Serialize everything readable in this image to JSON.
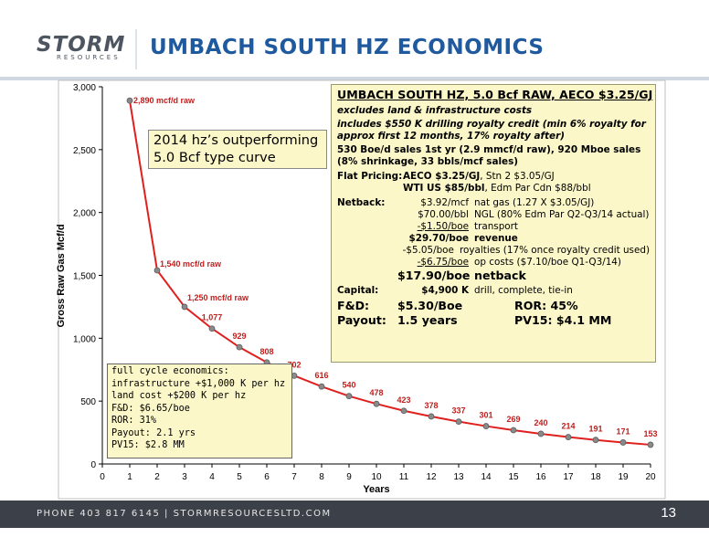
{
  "header": {
    "logo_main": "STORM",
    "logo_sub": "RESOURCES",
    "title": "UMBACH SOUTH HZ ECONOMICS",
    "accent_color": "#1f5a9e"
  },
  "footer": {
    "text": "PHONE 403 817 6145   |   STORMRESOURCESLTD.COM",
    "page_number": "13"
  },
  "callout": {
    "line1": "2014 hz’s outperforming",
    "line2": "5.0 Bcf type curve"
  },
  "info_box": {
    "title": "UMBACH SOUTH HZ, 5.0 Bcf RAW, AECO $3.25/GJ",
    "excludes": "excludes land & infrastructure costs",
    "includes": "includes $550 K drilling royalty credit (min 6% royalty for approx first 12 months, 17% royalty after)",
    "sales": "530 Boe/d sales 1st yr (2.9 mmcf/d raw), 920 Mboe sales (8% shrinkage, 33 bbls/mcf sales)",
    "flat_pricing_label": "Flat Pricing:",
    "flat_pricing_line1_bold": "AECO $3.25/GJ",
    "flat_pricing_line1_rest": ", Stn 2 $3.05/GJ",
    "flat_pricing_line2_bold": "WTI US $85/bbl",
    "flat_pricing_line2_rest": ", Edm Par Cdn $88/bbl",
    "netback_label": "Netback:",
    "netback_rows": [
      {
        "value": "$3.92/mcf",
        "desc": "nat gas (1.27 X $3.05/GJ)"
      },
      {
        "value": "$70.00/bbl",
        "desc": "NGL (80% Edm Par Q2-Q3/14 actual)"
      },
      {
        "value": "-$1.50/boe",
        "desc": "transport"
      },
      {
        "value": "$29.70/boe",
        "desc": "revenue"
      },
      {
        "value": "-$5.05/boe",
        "desc": "royalties (17% once royalty credit used)"
      },
      {
        "value": "-$6.75/boe",
        "desc": "op costs ($7.10/boe Q1-Q3/14)"
      },
      {
        "value": "$17.90/boe",
        "desc": "netback"
      }
    ],
    "capital_label": "Capital:",
    "capital_value": "$4,900 K",
    "capital_desc": "drill, complete, tie-in",
    "fd_label": "F&D:",
    "fd_value": "$5.30/Boe",
    "ror_label": "ROR: 45%",
    "payout_label": "Payout:",
    "payout_value": "1.5 years",
    "pv15_label": "PV15: $4.1 MM"
  },
  "econ_box": {
    "lines": [
      "full cycle economics:",
      "infrastructure +$1,000 K per hz",
      "land cost +$200 K per hz",
      "F&D: $6.65/boe",
      "ROR: 31%",
      "Payout: 2.1 yrs",
      "PV15: $2.8 MM"
    ]
  },
  "chart_data": {
    "type": "line",
    "title": "",
    "xlabel": "Years",
    "ylabel": "Gross Raw Gas Mcf/d",
    "x": [
      1,
      2,
      3,
      4,
      5,
      6,
      7,
      8,
      9,
      10,
      11,
      12,
      13,
      14,
      15,
      16,
      17,
      18,
      19,
      20
    ],
    "series": [
      {
        "values": [
          2890,
          1540,
          1250,
          1077,
          929,
          808,
          702,
          616,
          540,
          478,
          423,
          378,
          337,
          301,
          269,
          240,
          214,
          191,
          171,
          153
        ],
        "color": "#e0201e"
      }
    ],
    "data_labels": [
      "2,890  mcf/d raw",
      "1,540 mcf/d raw",
      "1,250 mcf/d raw",
      "1,077",
      "929",
      "808",
      "702",
      "616",
      "540",
      "478",
      "423",
      "378",
      "337",
      "301",
      "269",
      "240",
      "214",
      "191",
      "171",
      "153"
    ],
    "xlim": [
      0,
      20
    ],
    "ylim": [
      0,
      3000
    ],
    "x_ticks": [
      0,
      1,
      2,
      3,
      4,
      5,
      6,
      7,
      8,
      9,
      10,
      11,
      12,
      13,
      14,
      15,
      16,
      17,
      18,
      19,
      20
    ],
    "y_ticks": [
      0,
      500,
      1000,
      1500,
      2000,
      2500,
      3000
    ],
    "y_tick_labels": [
      "0",
      "500",
      "1,000",
      "1,500",
      "2,000",
      "2,500",
      "3,000"
    ],
    "grid": false,
    "legend": "none",
    "plot_background": "#ffffff"
  }
}
